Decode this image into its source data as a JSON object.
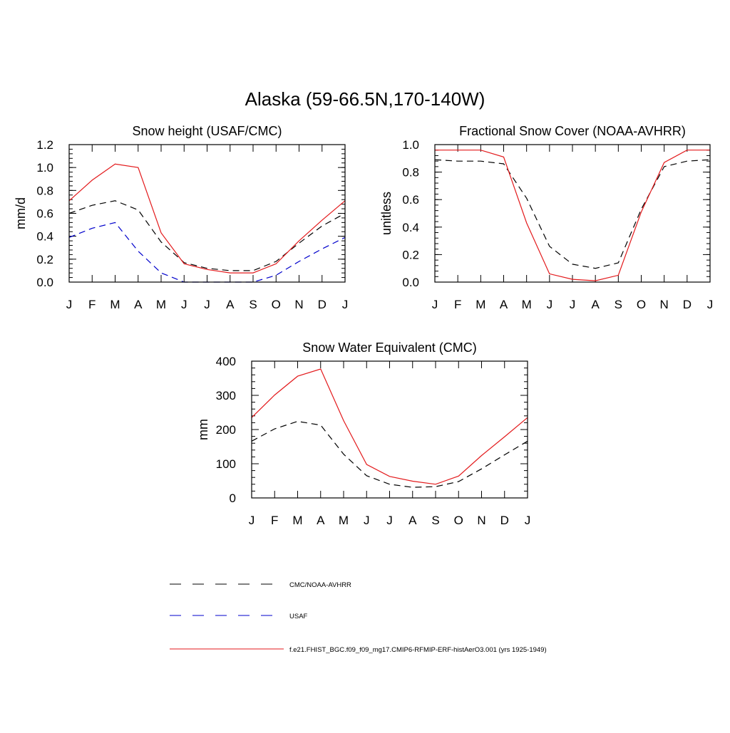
{
  "figure": {
    "title": "Alaska (59-66.5N,170-140W)"
  },
  "months": [
    "J",
    "F",
    "M",
    "A",
    "M",
    "J",
    "J",
    "A",
    "S",
    "O",
    "N",
    "D",
    "J"
  ],
  "colors": {
    "obs": "#000000",
    "usaf": "#0000cc",
    "model": "#e31a1c"
  },
  "legend": {
    "items": [
      {
        "label": "CMC/NOAA-AVHRR",
        "color": "#000000",
        "dashed": true
      },
      {
        "label": "USAF",
        "color": "#0000cc",
        "dashed": true
      },
      {
        "label": "f.e21.FHIST_BGC.f09_f09_mg17.CMIP6-RFMIP-ERF-histAerO3.001 (yrs 1925-1949)",
        "color": "#e31a1c",
        "dashed": false
      }
    ]
  },
  "chart_data": [
    {
      "type": "line",
      "title": "Snow height (USAF/CMC)",
      "ylabel": "mm/d",
      "ylim": [
        0,
        1.2
      ],
      "yticks": [
        0.0,
        0.2,
        0.4,
        0.6,
        0.8,
        1.0,
        1.2
      ],
      "ytick_labels": [
        "0.0",
        "0.2",
        "0.4",
        "0.6",
        "0.8",
        "1.0",
        "1.2"
      ],
      "series": [
        {
          "name": "CMC/NOAA-AVHRR",
          "style": "dashed",
          "color": "#000000",
          "values": [
            0.6,
            0.67,
            0.71,
            0.63,
            0.35,
            0.17,
            0.12,
            0.1,
            0.1,
            0.18,
            0.34,
            0.49,
            0.6
          ]
        },
        {
          "name": "USAF",
          "style": "dashed",
          "color": "#0000cc",
          "values": [
            0.39,
            0.47,
            0.52,
            0.27,
            0.08,
            0.0,
            0.0,
            0.0,
            0.0,
            0.06,
            0.18,
            0.29,
            0.39
          ]
        },
        {
          "name": "f.e21.FHIST_BGC.f09_f09_mg17.CMIP6-RFMIP-ERF-histAerO3.001 (yrs 1925-1949)",
          "style": "solid",
          "color": "#e31a1c",
          "values": [
            0.71,
            0.89,
            1.03,
            1.0,
            0.43,
            0.16,
            0.11,
            0.08,
            0.08,
            0.16,
            0.36,
            0.54,
            0.71
          ]
        }
      ]
    },
    {
      "type": "line",
      "title": "Fractional Snow Cover (NOAA-AVHRR)",
      "ylabel": "unitless",
      "ylim": [
        0,
        1.0
      ],
      "yticks": [
        0.0,
        0.2,
        0.4,
        0.6,
        0.8,
        1.0
      ],
      "ytick_labels": [
        "0.0",
        "0.2",
        "0.4",
        "0.6",
        "0.8",
        "1.0"
      ],
      "series": [
        {
          "name": "CMC/NOAA-AVHRR",
          "style": "dashed",
          "color": "#000000",
          "values": [
            0.89,
            0.88,
            0.88,
            0.86,
            0.61,
            0.26,
            0.13,
            0.1,
            0.14,
            0.53,
            0.84,
            0.88,
            0.89
          ]
        },
        {
          "name": "f.e21.FHIST_BGC.f09_f09_mg17.CMIP6-RFMIP-ERF-histAerO3.001 (yrs 1925-1949)",
          "style": "solid",
          "color": "#e31a1c",
          "values": [
            0.96,
            0.96,
            0.96,
            0.91,
            0.43,
            0.06,
            0.02,
            0.01,
            0.05,
            0.51,
            0.87,
            0.96,
            0.96
          ]
        }
      ]
    },
    {
      "type": "line",
      "title": "Snow Water Equivalent (CMC)",
      "ylabel": "mm",
      "ylim": [
        0,
        400
      ],
      "yticks": [
        0,
        100,
        200,
        300,
        400
      ],
      "ytick_labels": [
        "0",
        "100",
        "200",
        "300",
        "400"
      ],
      "series": [
        {
          "name": "CMC/NOAA-AVHRR",
          "style": "dashed",
          "color": "#000000",
          "values": [
            166,
            202,
            224,
            213,
            128,
            65,
            40,
            31,
            33,
            48,
            85,
            126,
            166
          ]
        },
        {
          "name": "f.e21.FHIST_BGC.f09_f09_mg17.CMIP6-RFMIP-ERF-histAerO3.001 (yrs 1925-1949)",
          "style": "solid",
          "color": "#e31a1c",
          "values": [
            235,
            301,
            356,
            377,
            226,
            98,
            63,
            49,
            40,
            64,
            124,
            179,
            235
          ]
        }
      ]
    }
  ]
}
